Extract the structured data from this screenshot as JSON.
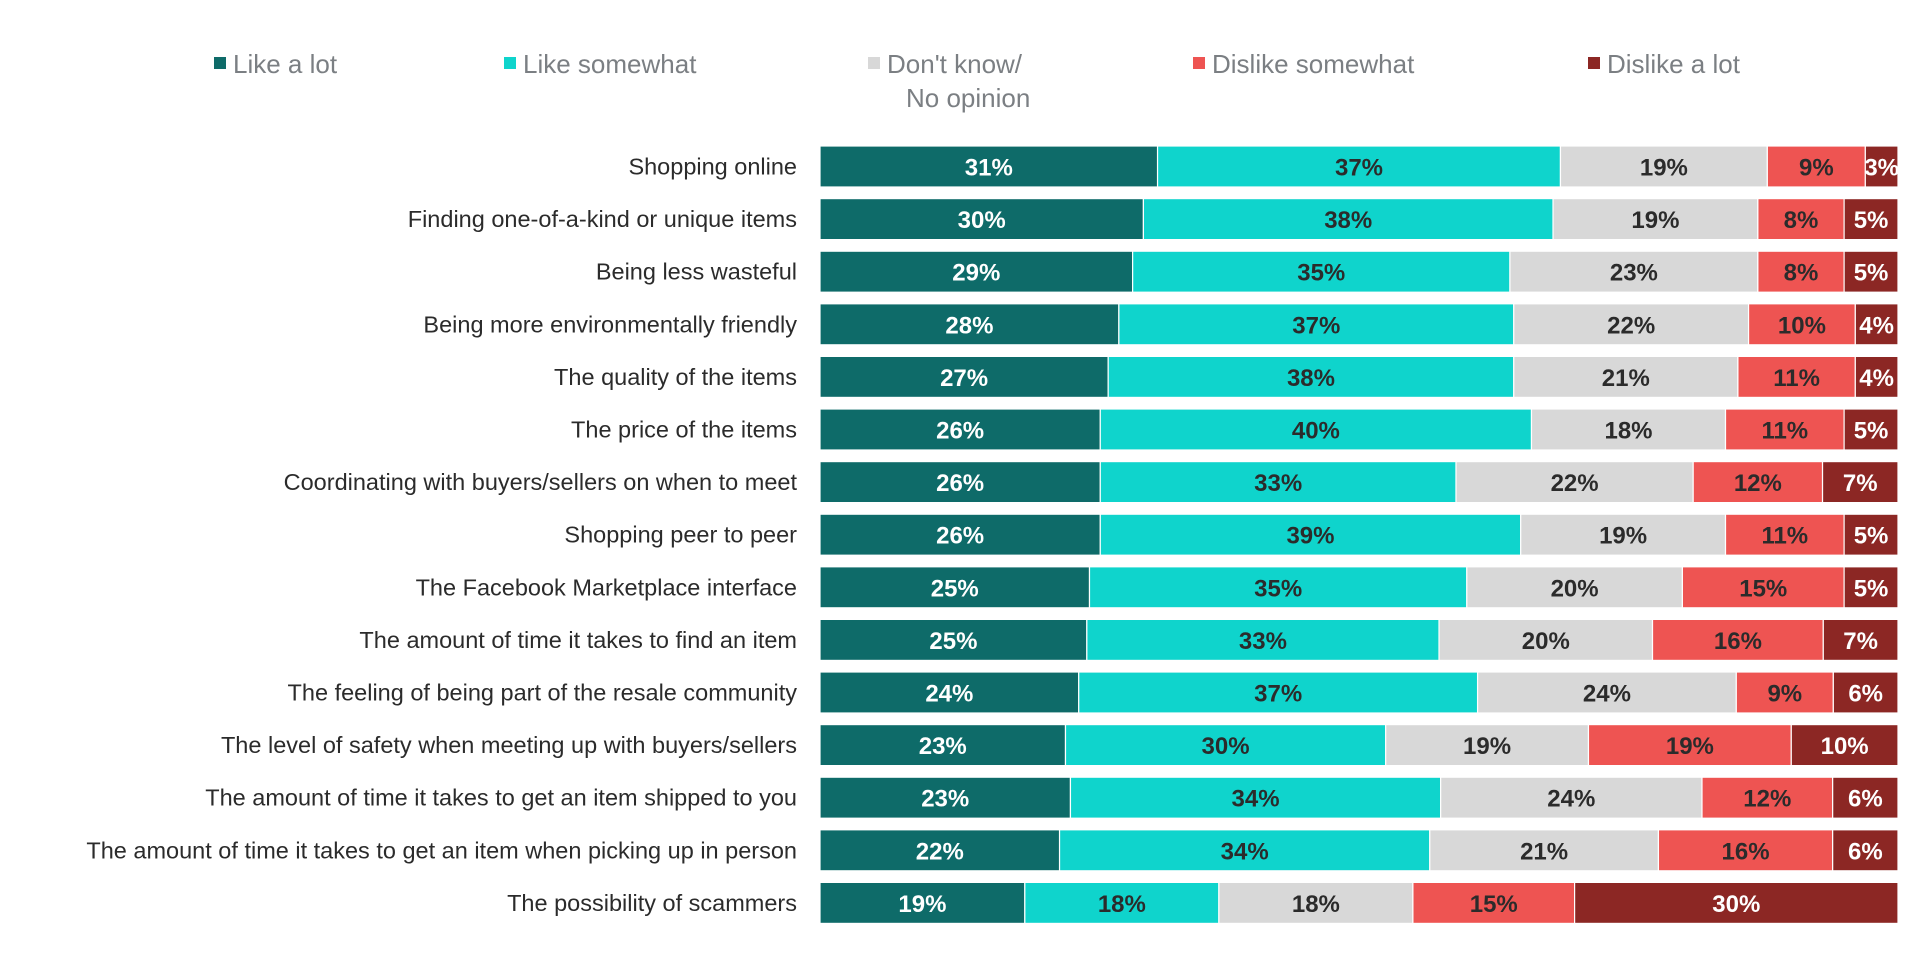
{
  "colors": {
    "like_a_lot": "#0e6b69",
    "like_somewhat": "#0fd4cc",
    "dont_know": "#d8d8d8",
    "dislike_somewhat": "#ee5452",
    "dislike_a_lot": "#8c2724",
    "label_light": "#ffffff",
    "label_dark": "#2b2b2b"
  },
  "chart_data": {
    "type": "bar",
    "orientation": "horizontal",
    "stacked": true,
    "legend_position": "top",
    "grid": false,
    "series": [
      {
        "name": "Like a lot",
        "name_lines": [
          "Like a lot"
        ],
        "values": [
          31,
          30,
          29,
          28,
          27,
          26,
          26,
          26,
          25,
          25,
          24,
          23,
          23,
          22,
          19
        ]
      },
      {
        "name": "Like somewhat",
        "name_lines": [
          "Like somewhat"
        ],
        "values": [
          37,
          38,
          35,
          37,
          38,
          40,
          33,
          39,
          35,
          33,
          37,
          30,
          34,
          34,
          18
        ]
      },
      {
        "name": "Don't know/ No opinion",
        "name_lines": [
          "Don't know/",
          "No opinion"
        ],
        "values": [
          19,
          19,
          23,
          22,
          21,
          18,
          22,
          19,
          20,
          20,
          24,
          19,
          24,
          21,
          18
        ]
      },
      {
        "name": "Dislike somewhat",
        "name_lines": [
          "Dislike somewhat"
        ],
        "values": [
          9,
          8,
          8,
          10,
          11,
          11,
          12,
          11,
          15,
          16,
          9,
          19,
          12,
          16,
          15
        ]
      },
      {
        "name": "Dislike a lot",
        "name_lines": [
          "Dislike a lot"
        ],
        "values": [
          3,
          5,
          5,
          4,
          4,
          5,
          7,
          5,
          5,
          7,
          6,
          10,
          6,
          6,
          30
        ]
      }
    ],
    "categories": [
      "Shopping online",
      "Finding one-of-a-kind or unique items",
      "Being less wasteful",
      "Being more environmentally friendly",
      "The quality of the items",
      "The price of the items",
      "Coordinating with buyers/sellers on when to meet",
      "Shopping peer to peer",
      "The Facebook Marketplace interface",
      "The amount of time it takes to find an item",
      "The feeling of being part of the resale community",
      "The level of safety when meeting up with buyers/sellers",
      "The amount of time it takes to get an item shipped to you",
      "The amount of time it takes to get an item when picking up in person",
      "The possibility of scammers"
    ]
  }
}
